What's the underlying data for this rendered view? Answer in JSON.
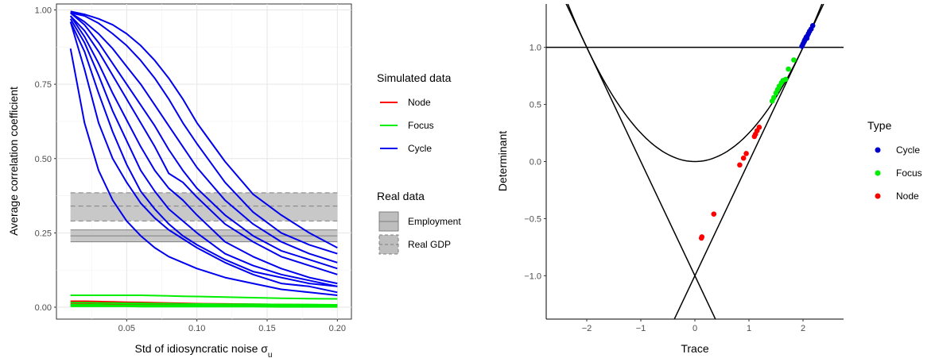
{
  "chart_data": [
    {
      "type": "line",
      "xlabel": "Std of idiosyncratic noise σ",
      "xlabel_sub": "u",
      "ylabel": "Average correlation coefficient",
      "xlim": [
        0.0,
        0.21
      ],
      "ylim": [
        -0.04,
        1.02
      ],
      "xticks": [
        0.05,
        0.1,
        0.15,
        0.2
      ],
      "xtick_labels": [
        "0.05",
        "0.10",
        "0.15",
        "0.20"
      ],
      "yticks": [
        0.0,
        0.25,
        0.5,
        0.75,
        1.0
      ],
      "ytick_labels": [
        "0.00",
        "0.25",
        "0.50",
        "0.75",
        "1.00"
      ],
      "grid": true,
      "colors": {
        "Node": "#ff0000",
        "Focus": "#00ee00",
        "Cycle": "#0000ee",
        "band": "#bebebe",
        "band_line": "#7f7f7f"
      },
      "legend_sim_title": "Simulated data",
      "legend_sim": [
        "Node",
        "Focus",
        "Cycle"
      ],
      "legend_real_title": "Real data",
      "legend_real": [
        "Employment",
        "Real GDP"
      ],
      "bands": [
        {
          "name": "Employment",
          "center": 0.24,
          "lower": 0.22,
          "upper": 0.26,
          "linetype": "solid"
        },
        {
          "name": "Real GDP",
          "center": 0.34,
          "lower": 0.29,
          "upper": 0.385,
          "linetype": "dashed"
        }
      ],
      "x": [
        0.01,
        0.02,
        0.03,
        0.04,
        0.05,
        0.06,
        0.07,
        0.08,
        0.09,
        0.1,
        0.12,
        0.14,
        0.16,
        0.18,
        0.2
      ],
      "series": [
        {
          "name": "Cycle",
          "values": [
            0.995,
            0.985,
            0.97,
            0.95,
            0.92,
            0.88,
            0.83,
            0.77,
            0.7,
            0.62,
            0.49,
            0.38,
            0.31,
            0.25,
            0.2
          ]
        },
        {
          "name": "Cycle",
          "values": [
            0.99,
            0.98,
            0.955,
            0.92,
            0.88,
            0.83,
            0.77,
            0.7,
            0.62,
            0.55,
            0.42,
            0.32,
            0.25,
            0.21,
            0.18
          ]
        },
        {
          "name": "Cycle",
          "values": [
            0.99,
            0.96,
            0.92,
            0.87,
            0.81,
            0.75,
            0.68,
            0.61,
            0.54,
            0.47,
            0.36,
            0.28,
            0.22,
            0.18,
            0.15
          ]
        },
        {
          "name": "Cycle",
          "values": [
            0.99,
            0.95,
            0.89,
            0.82,
            0.75,
            0.68,
            0.61,
            0.53,
            0.46,
            0.4,
            0.31,
            0.24,
            0.19,
            0.16,
            0.13
          ]
        },
        {
          "name": "Cycle",
          "values": [
            0.98,
            0.93,
            0.86,
            0.78,
            0.7,
            0.62,
            0.54,
            0.45,
            0.42,
            0.37,
            0.28,
            0.22,
            0.17,
            0.14,
            0.11
          ]
        },
        {
          "name": "Cycle",
          "values": [
            0.98,
            0.91,
            0.82,
            0.72,
            0.63,
            0.54,
            0.46,
            0.4,
            0.36,
            0.31,
            0.22,
            0.17,
            0.13,
            0.1,
            0.08
          ]
        },
        {
          "name": "Cycle",
          "values": [
            0.97,
            0.89,
            0.78,
            0.66,
            0.56,
            0.46,
            0.39,
            0.33,
            0.29,
            0.25,
            0.18,
            0.14,
            0.11,
            0.09,
            0.07
          ]
        },
        {
          "name": "Cycle",
          "values": [
            0.96,
            0.86,
            0.72,
            0.59,
            0.48,
            0.39,
            0.33,
            0.28,
            0.24,
            0.21,
            0.16,
            0.12,
            0.1,
            0.08,
            0.07
          ]
        },
        {
          "name": "Cycle",
          "values": [
            0.96,
            0.8,
            0.62,
            0.5,
            0.42,
            0.35,
            0.3,
            0.26,
            0.23,
            0.2,
            0.15,
            0.11,
            0.08,
            0.07,
            0.05
          ]
        },
        {
          "name": "Cycle",
          "values": [
            0.87,
            0.62,
            0.46,
            0.36,
            0.29,
            0.24,
            0.2,
            0.17,
            0.15,
            0.13,
            0.1,
            0.08,
            0.06,
            0.05,
            0.04
          ]
        },
        {
          "name": "Focus",
          "values": [
            0.04,
            0.04,
            0.04,
            0.04,
            0.04,
            0.04,
            0.039,
            0.038,
            0.037,
            0.036,
            0.034,
            0.032,
            0.03,
            0.029,
            0.028
          ]
        },
        {
          "name": "Focus",
          "values": [
            0.015,
            0.015,
            0.014,
            0.014,
            0.013,
            0.013,
            0.012,
            0.012,
            0.011,
            0.011,
            0.01,
            0.01,
            0.009,
            0.009,
            0.008
          ]
        },
        {
          "name": "Focus",
          "values": [
            0.008,
            0.008,
            0.008,
            0.007,
            0.007,
            0.007,
            0.006,
            0.006,
            0.006,
            0.006,
            0.005,
            0.005,
            0.005,
            0.004,
            0.004
          ]
        },
        {
          "name": "Focus",
          "values": [
            0.003,
            0.003,
            0.003,
            0.003,
            0.003,
            0.002,
            0.002,
            0.002,
            0.002,
            0.002,
            0.002,
            0.002,
            0.001,
            0.001,
            0.001
          ]
        },
        {
          "name": "Node",
          "values": [
            0.02,
            0.02,
            0.019,
            0.018,
            0.017,
            0.016,
            0.015,
            0.014,
            0.013,
            0.012,
            0.011,
            0.01,
            0.009,
            0.008,
            0.007
          ]
        },
        {
          "name": "Node",
          "values": [
            0.01,
            0.01,
            0.01,
            0.009,
            0.009,
            0.008,
            0.008,
            0.007,
            0.007,
            0.006,
            0.006,
            0.005,
            0.005,
            0.004,
            0.004
          ]
        }
      ]
    },
    {
      "type": "scatter",
      "xlabel": "Trace",
      "ylabel": "Determinant",
      "xlim": [
        -2.75,
        2.75
      ],
      "ylim": [
        -1.38,
        1.38
      ],
      "xticks": [
        -2,
        -1,
        0,
        1,
        2
      ],
      "xtick_labels": [
        "−2",
        "−1",
        "0",
        "1",
        "2"
      ],
      "yticks": [
        -1.0,
        -0.5,
        0.0,
        0.5,
        1.0
      ],
      "ytick_labels": [
        "−1.0",
        "−0.5",
        "0.0",
        "0.5",
        "1.0"
      ],
      "grid": false,
      "reference_curves": [
        "det = 1",
        "det = trace^2/4",
        "det = trace - 1",
        "det = -trace - 1"
      ],
      "legend_title": "Type",
      "legend": [
        "Cycle",
        "Focus",
        "Node"
      ],
      "colors": {
        "Cycle": "#0000cd",
        "Focus": "#00ee00",
        "Node": "#ff0000"
      },
      "points": {
        "Cycle": [
          [
            1.98,
            1.01
          ],
          [
            2.0,
            1.03
          ],
          [
            2.02,
            1.05
          ],
          [
            2.04,
            1.07
          ],
          [
            2.06,
            1.09
          ],
          [
            2.08,
            1.1
          ],
          [
            2.1,
            1.12
          ],
          [
            2.12,
            1.14
          ],
          [
            2.15,
            1.16
          ],
          [
            2.18,
            1.19
          ],
          [
            2.03,
            1.06
          ],
          [
            2.07,
            1.08
          ]
        ],
        "Focus": [
          [
            1.43,
            0.53
          ],
          [
            1.46,
            0.56
          ],
          [
            1.5,
            0.6
          ],
          [
            1.53,
            0.63
          ],
          [
            1.56,
            0.66
          ],
          [
            1.6,
            0.69
          ],
          [
            1.63,
            0.71
          ],
          [
            1.68,
            0.72
          ],
          [
            1.73,
            0.81
          ],
          [
            1.83,
            0.89
          ]
        ],
        "Node": [
          [
            1.19,
            0.3
          ],
          [
            1.15,
            0.27
          ],
          [
            1.12,
            0.24
          ],
          [
            1.1,
            0.22
          ],
          [
            0.95,
            0.07
          ],
          [
            0.9,
            0.03
          ],
          [
            0.83,
            -0.03
          ],
          [
            0.35,
            -0.46
          ],
          [
            0.13,
            -0.66
          ],
          [
            0.12,
            -0.67
          ]
        ]
      }
    }
  ]
}
